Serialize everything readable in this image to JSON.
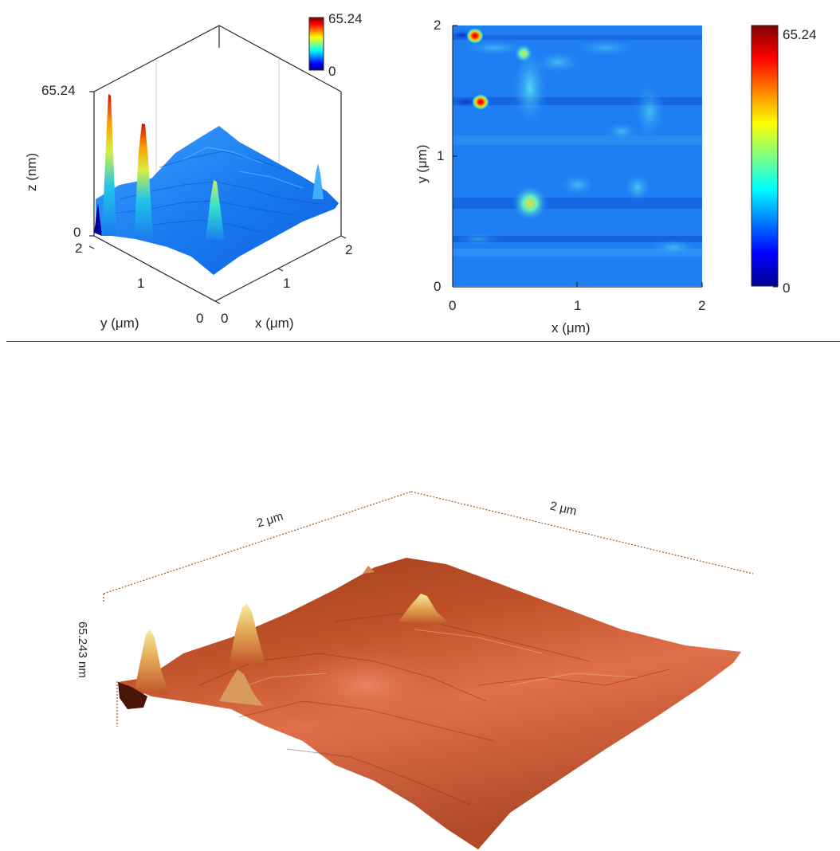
{
  "chart_data": [
    {
      "type": "surface",
      "view": "3d",
      "xlabel": "x (μm)",
      "ylabel": "y (μm)",
      "zlabel": "z (nm)",
      "xlim": [
        0,
        2
      ],
      "ylim": [
        0,
        2
      ],
      "zlim": [
        0,
        65.24
      ],
      "x_ticks": [
        "0",
        "1",
        "2"
      ],
      "y_ticks": [
        "0",
        "1",
        "2"
      ],
      "z_ticks": [
        "0",
        "65.24"
      ],
      "colorbar": {
        "min_label": "0",
        "max_label": "65.24",
        "colormap": "jet"
      },
      "peaks": [
        {
          "x": 0.2,
          "y": 1.9,
          "z": 65.24
        },
        {
          "x": 0.2,
          "y": 1.42,
          "z": 60
        },
        {
          "x": 0.65,
          "y": 0.65,
          "z": 42
        },
        {
          "x": 0.6,
          "y": 1.78,
          "z": 30
        }
      ]
    },
    {
      "type": "heatmap",
      "xlabel": "x (μm)",
      "ylabel": "y (μm)",
      "xlim": [
        0,
        2
      ],
      "ylim": [
        0,
        2
      ],
      "x_ticks": [
        "0",
        "1",
        "2"
      ],
      "y_ticks": [
        "0",
        "1",
        "2"
      ],
      "colorbar": {
        "min_label": "0",
        "max_label": "65.24",
        "colormap": "jet"
      },
      "hotspots": [
        {
          "x": 0.18,
          "y": 1.9,
          "value": 65.24
        },
        {
          "x": 0.22,
          "y": 1.42,
          "value": 60
        },
        {
          "x": 0.65,
          "y": 0.65,
          "value": 40
        },
        {
          "x": 0.6,
          "y": 1.78,
          "value": 30
        }
      ]
    },
    {
      "type": "surface",
      "view": "3d-rendered",
      "colormap": "copper",
      "x_extent_label": "2 μm",
      "y_extent_label": "2 μm",
      "z_extent_label": "65.243 nm"
    }
  ],
  "colors": {
    "copper_dark": "#5a1a08",
    "copper_mid": "#c0522a",
    "copper_light": "#f0e08a",
    "axis": "#262626",
    "bracket": "#a0561c"
  }
}
